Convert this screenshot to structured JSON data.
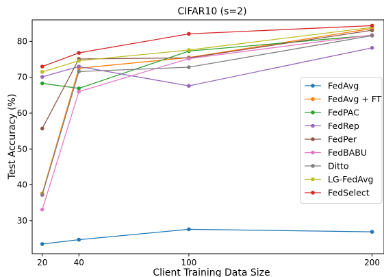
{
  "chart_data": {
    "type": "line",
    "title": "CIFAR10 (s=2)",
    "xlabel": "Client Training Data Size",
    "ylabel": "Test Accuracy (%)",
    "x": [
      20,
      40,
      100,
      200
    ],
    "xticks": [
      20,
      40,
      100,
      200
    ],
    "yticks": [
      30,
      40,
      50,
      60,
      70,
      80
    ],
    "xlim": [
      14.5,
      206.5
    ],
    "ylim": [
      20.8,
      86.0
    ],
    "grid": false,
    "legend_position": "right",
    "series": [
      {
        "name": "FedAvg",
        "color": "#1f77b4",
        "values": [
          23.5,
          24.7,
          27.6,
          26.9
        ]
      },
      {
        "name": "FedAvg + FT",
        "color": "#ff7f0e",
        "values": [
          37.6,
          72.5,
          75.5,
          83.6
        ]
      },
      {
        "name": "FedPAC",
        "color": "#2ca02c",
        "values": [
          68.3,
          66.9,
          77.3,
          81.7
        ]
      },
      {
        "name": "FedRep",
        "color": "#9467bd",
        "values": [
          70.1,
          73.0,
          67.6,
          78.2
        ]
      },
      {
        "name": "FedPer",
        "color": "#8c564b",
        "values": [
          55.7,
          75.1,
          75.4,
          83.1
        ]
      },
      {
        "name": "FedBABU",
        "color": "#e377c2",
        "values": [
          33.1,
          66.0,
          75.2,
          81.8
        ]
      },
      {
        "name": "Ditto",
        "color": "#7f7f7f",
        "values": [
          37.2,
          71.6,
          72.8,
          81.6
        ]
      },
      {
        "name": "LG-FedAvg",
        "color": "#bcbd22",
        "values": [
          71.5,
          74.6,
          77.6,
          83.9
        ]
      },
      {
        "name": "FedSelect",
        "color": "#d62728",
        "values": [
          73.0,
          76.8,
          82.1,
          84.4
        ]
      }
    ]
  }
}
